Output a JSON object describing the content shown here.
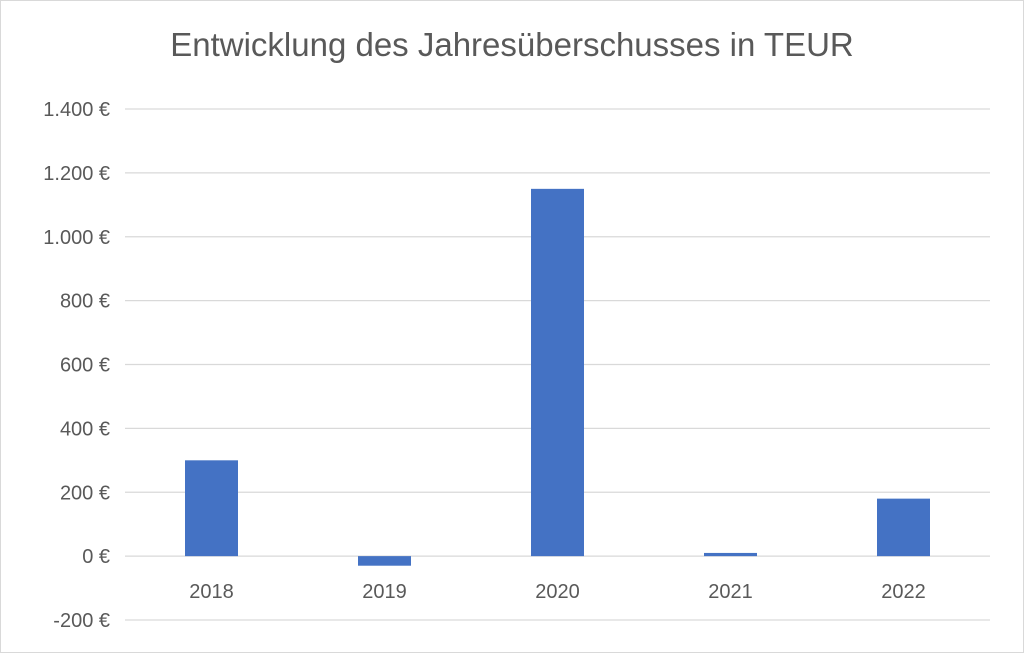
{
  "chart_data": {
    "type": "bar",
    "title": "Entwicklung des Jahresüberschusses in TEUR",
    "categories": [
      "2018",
      "2019",
      "2020",
      "2021",
      "2022"
    ],
    "values": [
      300,
      -30,
      1150,
      10,
      180
    ],
    "ylim": [
      -200,
      1400
    ],
    "yticks": [
      -200,
      0,
      200,
      400,
      600,
      800,
      1000,
      1200,
      1400
    ],
    "ytick_labels": [
      "-200 €",
      "0 €",
      "200 €",
      "400 €",
      "600 €",
      "800 €",
      "1.000 €",
      "1.200 €",
      "1.400 €"
    ],
    "xlabel": "",
    "ylabel": "",
    "grid": true,
    "legend": "none",
    "bar_color": "#4472c4",
    "grid_color": "#d9d9d9",
    "text_color": "#595959"
  }
}
